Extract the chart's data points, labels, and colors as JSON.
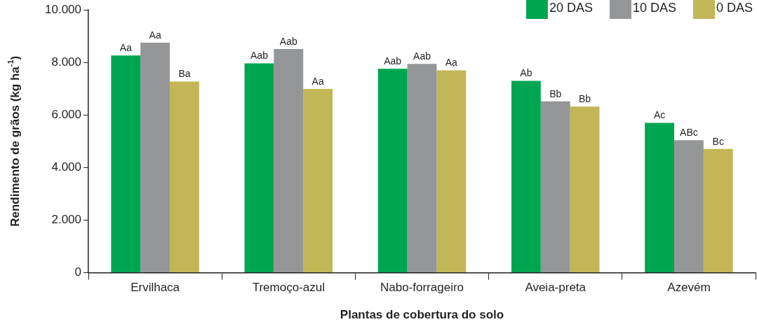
{
  "chart_data": {
    "type": "bar",
    "xlabel": "Plantas de cobertura do solo",
    "ylabel": "Rendimento de grãos (kg ha$^{-1}$)",
    "categories": [
      "Ervilhaca",
      "Tremoço-azul",
      "Nabo-forrageiro",
      "Aveia-preta",
      "Azevém"
    ],
    "series": [
      {
        "name": "20 DAS",
        "color": "#00a551",
        "values": [
          8260,
          7960,
          7760,
          7300,
          5700
        ],
        "value_labels": [
          "Aa",
          "Aab",
          "Aab",
          "Ab",
          "Ac"
        ]
      },
      {
        "name": "10 DAS",
        "color": "#959698",
        "values": [
          8750,
          8510,
          7940,
          6520,
          5040
        ],
        "value_labels": [
          "Aa",
          "Aab",
          "Aab",
          "Bb",
          "ABc"
        ]
      },
      {
        "name": "0 DAS",
        "color": "#c2b657",
        "values": [
          7270,
          6990,
          7700,
          6320,
          4710
        ],
        "value_labels": [
          "Ba",
          "Aa",
          "Aa",
          "Bb",
          "Bc"
        ]
      }
    ],
    "ylim": [
      0,
      10000
    ],
    "yticks": [
      {
        "value": 0,
        "label": "0"
      },
      {
        "value": 2000,
        "label": "2.000"
      },
      {
        "value": 4000,
        "label": "4.000"
      },
      {
        "value": 6000,
        "label": "6.000"
      },
      {
        "value": 8000,
        "label": "8.000"
      },
      {
        "value": 10000,
        "label": "10.000"
      }
    ],
    "grid": false,
    "legend": "top right"
  }
}
